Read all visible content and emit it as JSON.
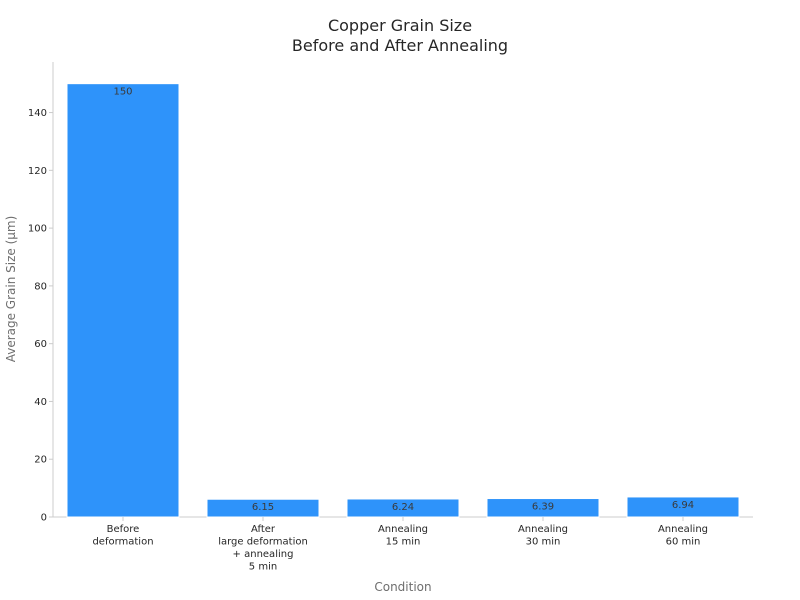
{
  "chart_data": {
    "type": "bar",
    "title_lines": [
      "Copper Grain Size",
      "Before and After Annealing"
    ],
    "xlabel": "Condition",
    "ylabel": "Average Grain Size (μm)",
    "categories": [
      [
        "Before",
        "deformation"
      ],
      [
        "After",
        "large deformation",
        "+ annealing",
        "5 min"
      ],
      [
        "Annealing",
        "15 min"
      ],
      [
        "Annealing",
        "30 min"
      ],
      [
        "Annealing",
        "60 min"
      ]
    ],
    "values": [
      150,
      6.15,
      6.24,
      6.39,
      6.94
    ],
    "value_labels": [
      "150",
      "6.15",
      "6.24",
      "6.39",
      "6.94"
    ],
    "yticks": [
      0,
      20,
      40,
      60,
      80,
      100,
      120,
      140
    ],
    "ylim": [
      0,
      157.5
    ],
    "grid": false,
    "legend": "none",
    "colors": {
      "bar": "#2e93fa",
      "bar_edge": "#ffffff",
      "axis": "#cccccc"
    }
  }
}
